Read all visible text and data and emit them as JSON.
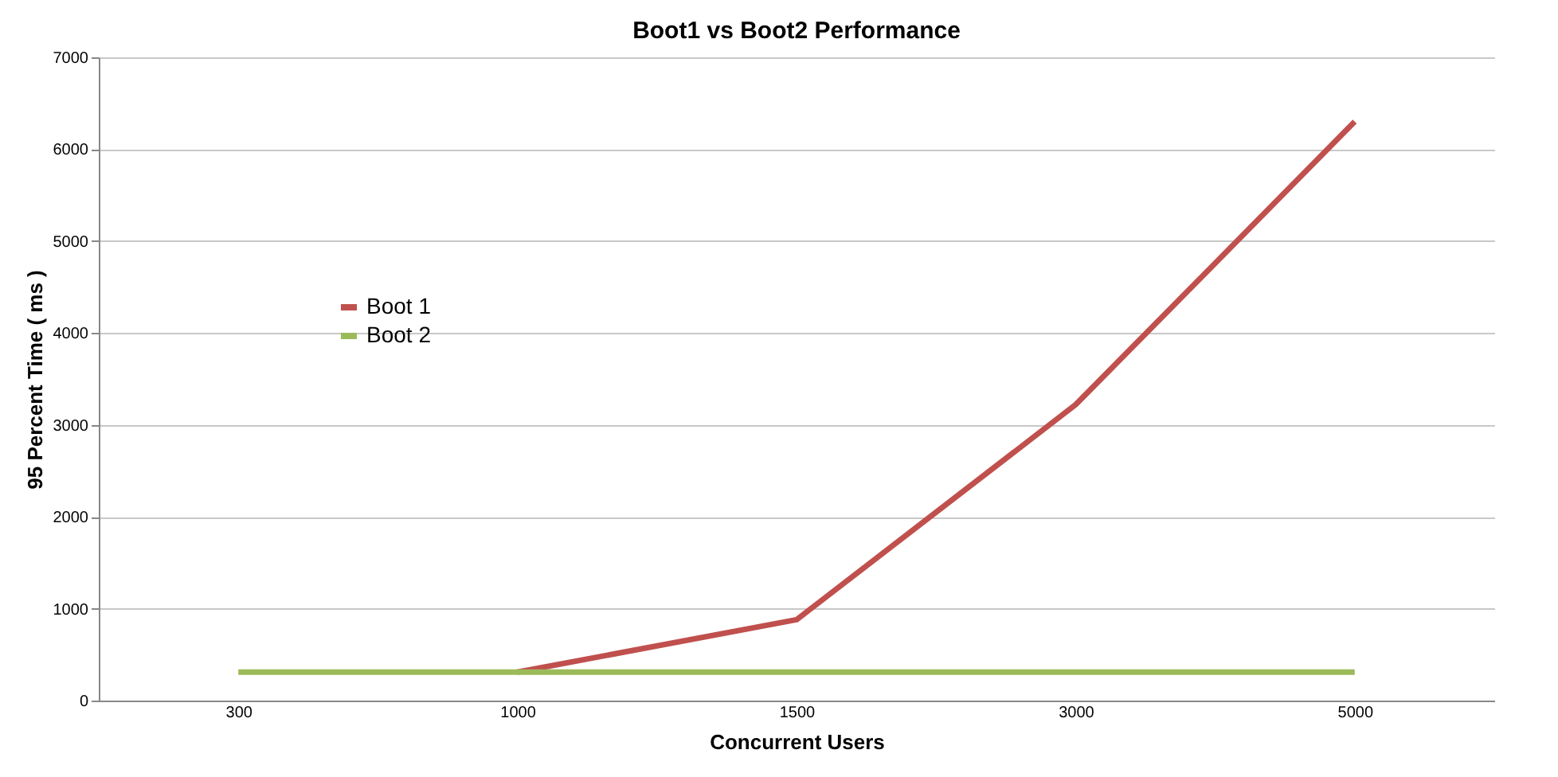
{
  "chart_data": {
    "type": "line",
    "title": "Boot1 vs Boot2 Performance",
    "xlabel": "Concurrent Users",
    "ylabel": "95 Percent Time ( ms )",
    "categories": [
      "300",
      "1000",
      "1500",
      "3000",
      "5000"
    ],
    "series": [
      {
        "name": "Boot 1",
        "color": "#c0504d",
        "values": [
          null,
          310,
          880,
          3220,
          6300
        ]
      },
      {
        "name": "Boot 2",
        "color": "#9bbb59",
        "values": [
          310,
          310,
          310,
          310,
          310
        ]
      }
    ],
    "ylim": [
      0,
      7000
    ],
    "yticks": [
      0,
      1000,
      2000,
      3000,
      4000,
      5000,
      6000,
      7000
    ],
    "grid": "y",
    "legend": "top left",
    "marker": "none",
    "line_style": "solid"
  }
}
